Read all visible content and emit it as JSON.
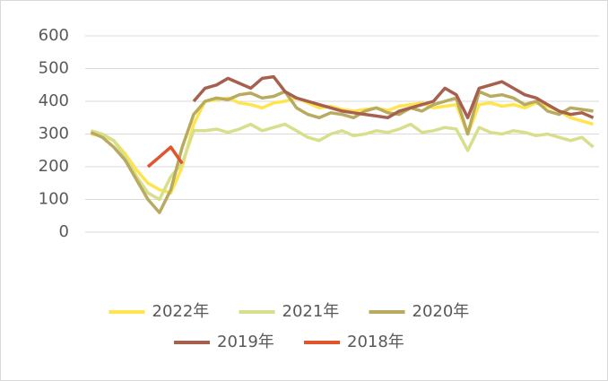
{
  "chart_data": {
    "type": "line",
    "categories": [
      null,
      null,
      null,
      null,
      null,
      null,
      null,
      null,
      null,
      null,
      null,
      null,
      null,
      null,
      null,
      null,
      null,
      null,
      null,
      null,
      null,
      null,
      null,
      null,
      null,
      null,
      null,
      null,
      null,
      null,
      null,
      null,
      null,
      null,
      null,
      null,
      null,
      null,
      null,
      null,
      null,
      null,
      null,
      null,
      null
    ],
    "series": [
      {
        "name": "2022年",
        "color": "#FFE44D",
        "values": [
          300,
          295,
          280,
          240,
          190,
          150,
          130,
          120,
          200,
          330,
          400,
          405,
          410,
          395,
          390,
          380,
          395,
          400,
          410,
          395,
          380,
          385,
          375,
          370,
          375,
          380,
          372,
          385,
          390,
          395,
          380,
          385,
          390,
          300,
          390,
          395,
          385,
          390,
          380,
          395,
          385,
          370,
          350,
          340,
          330
        ]
      },
      {
        "name": "2021年",
        "color": "#D8DF8C",
        "values": [
          310,
          300,
          280,
          230,
          170,
          120,
          100,
          170,
          210,
          310,
          310,
          315,
          305,
          315,
          330,
          310,
          320,
          330,
          310,
          290,
          280,
          300,
          310,
          295,
          300,
          310,
          305,
          315,
          330,
          305,
          310,
          320,
          315,
          250,
          320,
          305,
          300,
          310,
          305,
          295,
          300,
          290,
          280,
          290,
          260
        ]
      },
      {
        "name": "2020年",
        "color": "#B8AA5E",
        "values": [
          305,
          290,
          260,
          220,
          160,
          100,
          60,
          130,
          260,
          360,
          400,
          410,
          405,
          420,
          425,
          410,
          415,
          430,
          380,
          360,
          350,
          365,
          360,
          350,
          370,
          380,
          365,
          360,
          380,
          370,
          390,
          400,
          410,
          300,
          430,
          415,
          420,
          410,
          390,
          400,
          370,
          360,
          380,
          375,
          370
        ]
      },
      {
        "name": "2019年",
        "color": "#A8604E",
        "values": [
          null,
          null,
          null,
          null,
          null,
          null,
          null,
          null,
          null,
          400,
          440,
          450,
          470,
          455,
          440,
          470,
          475,
          430,
          410,
          400,
          390,
          380,
          370,
          365,
          360,
          355,
          350,
          370,
          380,
          390,
          400,
          440,
          420,
          350,
          440,
          450,
          460,
          440,
          420,
          410,
          390,
          370,
          360,
          365,
          350
        ]
      },
      {
        "name": "2018年",
        "color": "#E0552C",
        "values": [
          null,
          null,
          null,
          null,
          null,
          200,
          230,
          260,
          210,
          null,
          null,
          null,
          null,
          null,
          null,
          null,
          null,
          null,
          null,
          null,
          null,
          null,
          null,
          null,
          null,
          null,
          null,
          null,
          null,
          null,
          null,
          null,
          null,
          null,
          null,
          null,
          null,
          null,
          null,
          null,
          null,
          null,
          null,
          null,
          null
        ]
      }
    ],
    "ylim": [
      0,
      600
    ],
    "yticks": [
      0,
      100,
      200,
      300,
      400,
      500,
      600
    ],
    "grid": true
  }
}
